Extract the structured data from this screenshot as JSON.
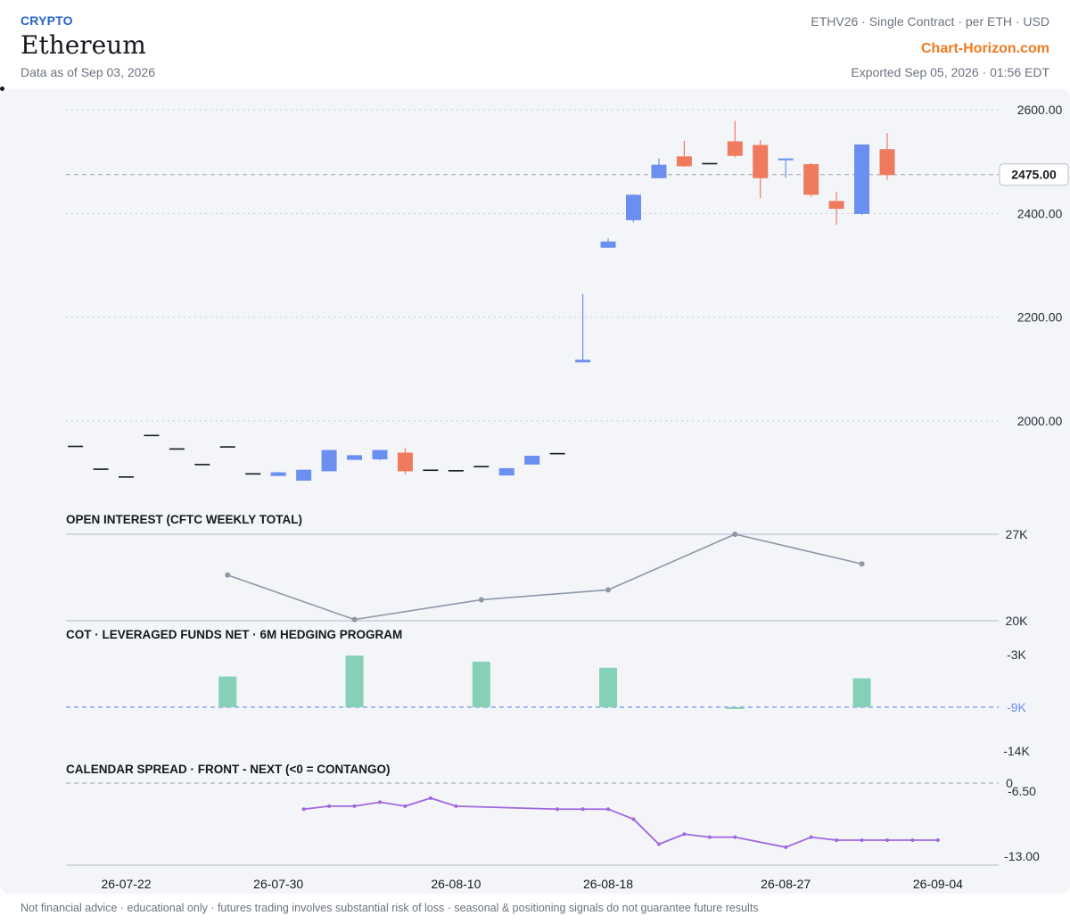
{
  "header": {
    "category": "CRYPTO",
    "title": "Ethereum",
    "as_of": "Data as of Sep 03, 2026",
    "contract": "ETHV26 · Single Contract · per ETH · USD",
    "brand": "Chart-Horizon.com",
    "exported": "Exported Sep 05, 2026 · 01:56 EDT"
  },
  "footer": "Not financial advice · educational only · futures trading involves substantial risk of loss · seasonal & positioning signals do not guarantee future results",
  "colors": {
    "up": "#6b8ff0",
    "down": "#f07a5e",
    "flat": "#15181f",
    "oi_line": "#8d97a6",
    "cot_bar": "#86d0b7",
    "spread_line": "#a066e0",
    "ref_line": "#6b8ff0"
  },
  "chart_data": [
    {
      "type": "candlestick",
      "title": "",
      "last_price": 2475,
      "last_label": "2475.00",
      "ylim": [
        1860,
        2600
      ],
      "yticks": [
        {
          "v": 2000,
          "label": "2000.00"
        },
        {
          "v": 2200,
          "label": "2200.00"
        },
        {
          "v": 2400,
          "label": "2400.00"
        },
        {
          "v": 2600,
          "label": "2600.00"
        }
      ],
      "grid": true,
      "candles": [
        {
          "o": 1951,
          "h": 1951,
          "l": 1951,
          "c": 1951
        },
        {
          "o": 1907,
          "h": 1907,
          "l": 1907,
          "c": 1907
        },
        {
          "o": 1892,
          "h": 1892,
          "l": 1892,
          "c": 1892
        },
        {
          "o": 1972,
          "h": 1972,
          "l": 1972,
          "c": 1972
        },
        {
          "o": 1946,
          "h": 1946,
          "l": 1946,
          "c": 1946
        },
        {
          "o": 1916,
          "h": 1916,
          "l": 1916,
          "c": 1916
        },
        {
          "o": 1950,
          "h": 1950,
          "l": 1950,
          "c": 1950
        },
        {
          "o": 1898,
          "h": 1898,
          "l": 1898,
          "c": 1898
        },
        {
          "o": 1894,
          "h": 1902,
          "l": 1894,
          "c": 1901
        },
        {
          "o": 1885,
          "h": 1906,
          "l": 1885,
          "c": 1906
        },
        {
          "o": 1903,
          "h": 1944,
          "l": 1903,
          "c": 1944
        },
        {
          "o": 1925,
          "h": 1934,
          "l": 1925,
          "c": 1934
        },
        {
          "o": 1926,
          "h": 1944,
          "l": 1924,
          "c": 1944
        },
        {
          "o": 1939,
          "h": 1948,
          "l": 1897,
          "c": 1903
        },
        {
          "o": 1905,
          "h": 1905,
          "l": 1905,
          "c": 1905
        },
        {
          "o": 1904,
          "h": 1904,
          "l": 1904,
          "c": 1904
        },
        {
          "o": 1912,
          "h": 1912,
          "l": 1912,
          "c": 1912
        },
        {
          "o": 1895,
          "h": 1909,
          "l": 1895,
          "c": 1909
        },
        {
          "o": 1916,
          "h": 1933,
          "l": 1916,
          "c": 1933
        },
        {
          "o": 1937,
          "h": 1937,
          "l": 1937,
          "c": 1937
        },
        {
          "o": 2113,
          "h": 2245,
          "l": 2113,
          "c": 2118
        },
        {
          "o": 2334,
          "h": 2352,
          "l": 2334,
          "c": 2346
        },
        {
          "o": 2387,
          "h": 2437,
          "l": 2383,
          "c": 2436
        },
        {
          "o": 2468,
          "h": 2506,
          "l": 2468,
          "c": 2494
        },
        {
          "o": 2510,
          "h": 2540,
          "l": 2490,
          "c": 2491
        },
        {
          "o": 2496,
          "h": 2496,
          "l": 2496,
          "c": 2496
        },
        {
          "o": 2539,
          "h": 2578,
          "l": 2508,
          "c": 2511
        },
        {
          "o": 2532,
          "h": 2541,
          "l": 2429,
          "c": 2468
        },
        {
          "o": 2503,
          "h": 2506,
          "l": 2469,
          "c": 2506
        },
        {
          "o": 2495,
          "h": 2497,
          "l": 2432,
          "c": 2436
        },
        {
          "o": 2424,
          "h": 2442,
          "l": 2378,
          "c": 2409
        },
        {
          "o": 2399,
          "h": 2533,
          "l": 2397,
          "c": 2533
        },
        {
          "o": 2524,
          "h": 2555,
          "l": 2465,
          "c": 2474
        }
      ]
    },
    {
      "type": "line",
      "title": "OPEN INTEREST (CFTC WEEKLY TOTAL)",
      "ylim": [
        20,
        27
      ],
      "yticks": [
        {
          "v": 20,
          "label": "20K"
        },
        {
          "v": 27,
          "label": "27K"
        }
      ],
      "series": [
        {
          "points": [
            [
              6,
              23.7
            ],
            [
              11,
              20.1
            ],
            [
              16,
              21.7
            ],
            [
              21,
              22.5
            ],
            [
              26,
              27
            ],
            [
              31,
              24.6
            ]
          ]
        }
      ]
    },
    {
      "type": "bar",
      "title": "COT · LEVERAGED FUNDS NET · 6M HEDGING PROGRAM",
      "ylim": [
        -14,
        -3
      ],
      "yticks": [
        {
          "v": -3,
          "label": "-3K"
        },
        {
          "v": -14,
          "label": "-14K"
        }
      ],
      "reference": {
        "v": -9,
        "label": "-9K"
      },
      "bars": [
        [
          6,
          -5.5
        ],
        [
          11,
          -3.1
        ],
        [
          16,
          -3.8
        ],
        [
          21,
          -4.5
        ],
        [
          26,
          -9.1
        ],
        [
          31,
          -5.7
        ]
      ]
    },
    {
      "type": "line",
      "title": "CALENDAR SPREAD · FRONT - NEXT (<0 = CONTANGO)",
      "ylim": [
        -13,
        -6.5
      ],
      "yticks": [
        {
          "v": -6.5,
          "label": "-6.50"
        },
        {
          "v": -13,
          "label": "-13.00"
        }
      ],
      "zero_label": "0",
      "series": [
        {
          "points": [
            [
              9,
              -8.3
            ],
            [
              10,
              -8.0
            ],
            [
              11,
              -8.0
            ],
            [
              12,
              -7.6
            ],
            [
              13,
              -8.0
            ],
            [
              14,
              -7.2
            ],
            [
              15,
              -8.0
            ],
            [
              19,
              -8.3
            ],
            [
              20,
              -8.3
            ],
            [
              21,
              -8.3
            ],
            [
              22,
              -9.3
            ],
            [
              23,
              -11.8
            ],
            [
              24,
              -10.8
            ],
            [
              25,
              -11.1
            ],
            [
              26,
              -11.1
            ],
            [
              28,
              -12.1
            ],
            [
              29,
              -11.1
            ],
            [
              30,
              -11.4
            ],
            [
              31,
              -11.4
            ],
            [
              32,
              -11.4
            ],
            [
              33,
              -11.4
            ],
            [
              34,
              -11.4
            ]
          ]
        }
      ]
    }
  ],
  "x_axis": {
    "ticks": [
      {
        "i": 2,
        "label": "26-07-22"
      },
      {
        "i": 8,
        "label": "26-07-30"
      },
      {
        "i": 15,
        "label": "26-08-10"
      },
      {
        "i": 21,
        "label": "26-08-18"
      },
      {
        "i": 28,
        "label": "26-08-27"
      },
      {
        "i": 34,
        "label": "26-09-04"
      }
    ]
  }
}
